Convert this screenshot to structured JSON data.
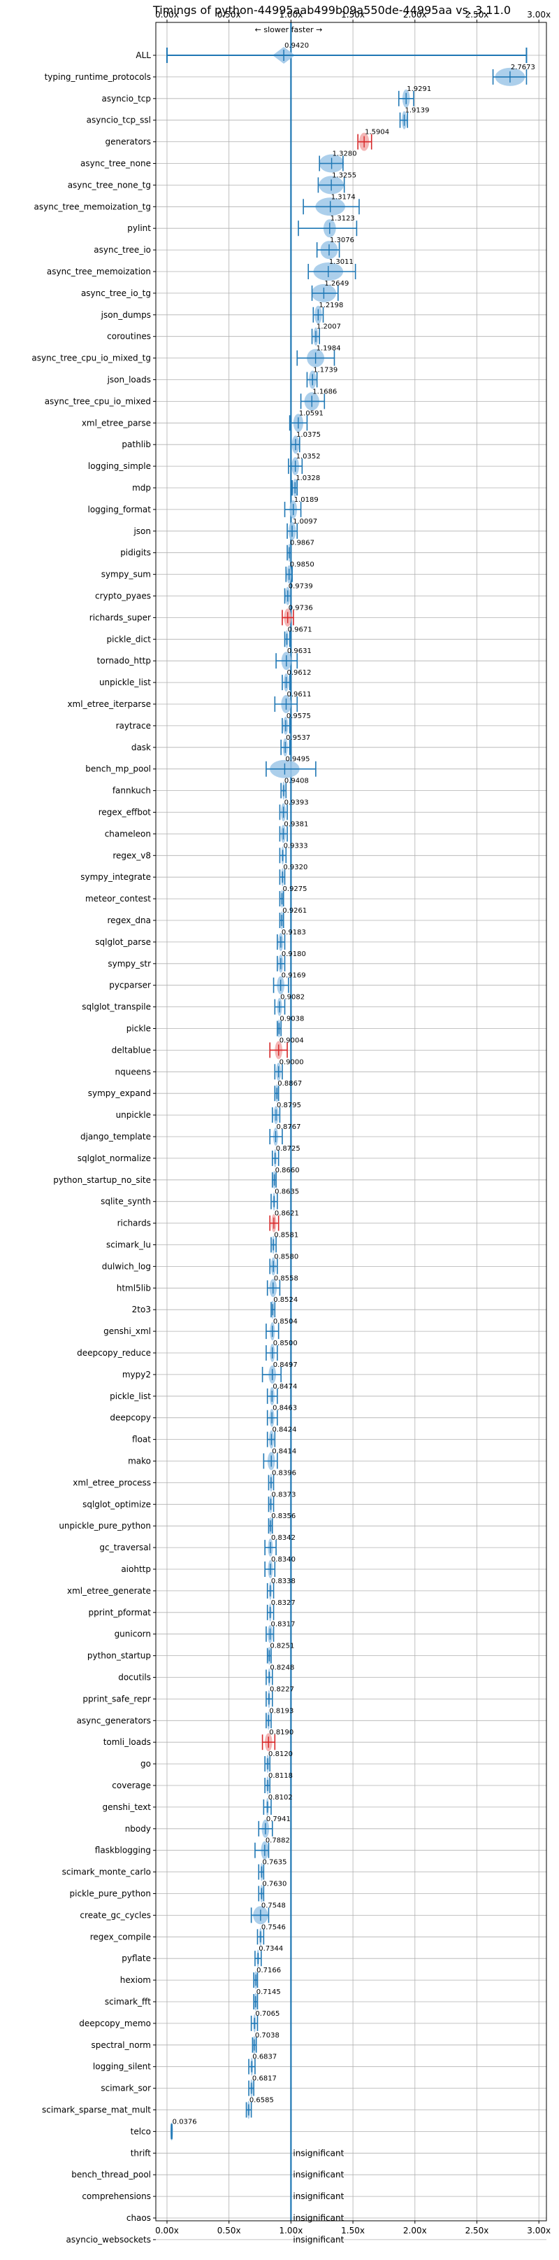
{
  "chart_data": {
    "type": "violin",
    "title": "Timings of python-44995aab499b09a550de-44995aa vs. 3.11.0",
    "annotation": "← slower   faster →",
    "xlim": [
      -0.05,
      3.0
    ],
    "xticks": [
      "0.00x",
      "0.50x",
      "1.00x",
      "1.50x",
      "2.00x",
      "2.50x",
      "3.00x"
    ],
    "xtick_values": [
      0,
      0.5,
      1.0,
      1.5,
      2.0,
      2.5,
      3.0
    ],
    "reference_line": 1.0,
    "grid": true,
    "insignificant_label": "insignificant",
    "benchmarks": [
      {
        "name": "ALL",
        "value": 0.942,
        "label": "0.9420",
        "lo": 0.0,
        "hi": 2.9,
        "spread": 0.08,
        "color": "blue"
      },
      {
        "name": "typing_runtime_protocols",
        "value": 2.7673,
        "label": "2.7673",
        "lo": 2.63,
        "hi": 2.9,
        "spread": 0.12,
        "color": "blue"
      },
      {
        "name": "asyncio_tcp",
        "value": 1.9291,
        "label": "1.9291",
        "lo": 1.87,
        "hi": 1.99,
        "spread": 0.03,
        "color": "blue"
      },
      {
        "name": "asyncio_tcp_ssl",
        "value": 1.9139,
        "label": "1.9139",
        "lo": 1.88,
        "hi": 1.94,
        "spread": 0.02,
        "color": "blue"
      },
      {
        "name": "generators",
        "value": 1.5904,
        "label": "1.5904",
        "lo": 1.54,
        "hi": 1.65,
        "spread": 0.04,
        "color": "red"
      },
      {
        "name": "async_tree_none",
        "value": 1.328,
        "label": "1.3280",
        "lo": 1.23,
        "hi": 1.42,
        "spread": 0.1,
        "color": "blue"
      },
      {
        "name": "async_tree_none_tg",
        "value": 1.3255,
        "label": "1.3255",
        "lo": 1.22,
        "hi": 1.43,
        "spread": 0.1,
        "color": "blue"
      },
      {
        "name": "async_tree_memoization_tg",
        "value": 1.3174,
        "label": "1.3174",
        "lo": 1.1,
        "hi": 1.55,
        "spread": 0.12,
        "color": "blue"
      },
      {
        "name": "pylint",
        "value": 1.3123,
        "label": "1.3123",
        "lo": 1.06,
        "hi": 1.53,
        "spread": 0.05,
        "color": "blue"
      },
      {
        "name": "async_tree_io",
        "value": 1.3076,
        "label": "1.3076",
        "lo": 1.21,
        "hi": 1.39,
        "spread": 0.07,
        "color": "blue"
      },
      {
        "name": "async_tree_memoization",
        "value": 1.3011,
        "label": "1.3011",
        "lo": 1.14,
        "hi": 1.52,
        "spread": 0.12,
        "color": "blue"
      },
      {
        "name": "async_tree_io_tg",
        "value": 1.2649,
        "label": "1.2649",
        "lo": 1.17,
        "hi": 1.38,
        "spread": 0.1,
        "color": "blue"
      },
      {
        "name": "json_dumps",
        "value": 1.2198,
        "label": "1.2198",
        "lo": 1.18,
        "hi": 1.26,
        "spread": 0.03,
        "color": "blue"
      },
      {
        "name": "coroutines",
        "value": 1.2007,
        "label": "1.2007",
        "lo": 1.17,
        "hi": 1.23,
        "spread": 0.02,
        "color": "blue"
      },
      {
        "name": "async_tree_cpu_io_mixed_tg",
        "value": 1.1984,
        "label": "1.1984",
        "lo": 1.05,
        "hi": 1.35,
        "spread": 0.07,
        "color": "blue"
      },
      {
        "name": "json_loads",
        "value": 1.1739,
        "label": "1.1739",
        "lo": 1.13,
        "hi": 1.21,
        "spread": 0.03,
        "color": "blue"
      },
      {
        "name": "async_tree_cpu_io_mixed",
        "value": 1.1686,
        "label": "1.1686",
        "lo": 1.08,
        "hi": 1.27,
        "spread": 0.06,
        "color": "blue"
      },
      {
        "name": "xml_etree_parse",
        "value": 1.0591,
        "label": "1.0591",
        "lo": 0.99,
        "hi": 1.13,
        "spread": 0.04,
        "color": "blue"
      },
      {
        "name": "pathlib",
        "value": 1.0375,
        "label": "1.0375",
        "lo": 1.0,
        "hi": 1.07,
        "spread": 0.03,
        "color": "blue"
      },
      {
        "name": "logging_simple",
        "value": 1.0352,
        "label": "1.0352",
        "lo": 0.98,
        "hi": 1.09,
        "spread": 0.03,
        "color": "blue"
      },
      {
        "name": "mdp",
        "value": 1.0328,
        "label": "1.0328",
        "lo": 1.01,
        "hi": 1.05,
        "spread": 0.02,
        "color": "blue"
      },
      {
        "name": "logging_format",
        "value": 1.0189,
        "label": "1.0189",
        "lo": 0.95,
        "hi": 1.08,
        "spread": 0.03,
        "color": "blue"
      },
      {
        "name": "json",
        "value": 1.0097,
        "label": "1.0097",
        "lo": 0.97,
        "hi": 1.05,
        "spread": 0.03,
        "color": "blue"
      },
      {
        "name": "pidigits",
        "value": 0.9867,
        "label": "0.9867",
        "lo": 0.97,
        "hi": 1.0,
        "spread": 0.01,
        "color": "blue"
      },
      {
        "name": "sympy_sum",
        "value": 0.985,
        "label": "0.9850",
        "lo": 0.96,
        "hi": 1.01,
        "spread": 0.02,
        "color": "blue"
      },
      {
        "name": "crypto_pyaes",
        "value": 0.9739,
        "label": "0.9739",
        "lo": 0.95,
        "hi": 1.0,
        "spread": 0.02,
        "color": "blue"
      },
      {
        "name": "richards_super",
        "value": 0.9736,
        "label": "0.9736",
        "lo": 0.93,
        "hi": 1.02,
        "spread": 0.03,
        "color": "red"
      },
      {
        "name": "pickle_dict",
        "value": 0.9671,
        "label": "0.9671",
        "lo": 0.95,
        "hi": 0.99,
        "spread": 0.01,
        "color": "blue"
      },
      {
        "name": "tornado_http",
        "value": 0.9631,
        "label": "0.9631",
        "lo": 0.88,
        "hi": 1.05,
        "spread": 0.04,
        "color": "blue"
      },
      {
        "name": "unpickle_list",
        "value": 0.9612,
        "label": "0.9612",
        "lo": 0.93,
        "hi": 0.99,
        "spread": 0.02,
        "color": "blue"
      },
      {
        "name": "xml_etree_iterparse",
        "value": 0.9611,
        "label": "0.9611",
        "lo": 0.87,
        "hi": 1.05,
        "spread": 0.04,
        "color": "blue"
      },
      {
        "name": "raytrace",
        "value": 0.9575,
        "label": "0.9575",
        "lo": 0.93,
        "hi": 0.99,
        "spread": 0.02,
        "color": "blue"
      },
      {
        "name": "dask",
        "value": 0.9537,
        "label": "0.9537",
        "lo": 0.92,
        "hi": 0.99,
        "spread": 0.02,
        "color": "blue"
      },
      {
        "name": "bench_mp_pool",
        "value": 0.9495,
        "label": "0.9495",
        "lo": 0.8,
        "hi": 1.2,
        "spread": 0.12,
        "color": "blue"
      },
      {
        "name": "fannkuch",
        "value": 0.9408,
        "label": "0.9408",
        "lo": 0.92,
        "hi": 0.96,
        "spread": 0.01,
        "color": "blue"
      },
      {
        "name": "regex_effbot",
        "value": 0.9393,
        "label": "0.9393",
        "lo": 0.91,
        "hi": 0.97,
        "spread": 0.02,
        "color": "blue"
      },
      {
        "name": "chameleon",
        "value": 0.9381,
        "label": "0.9381",
        "lo": 0.91,
        "hi": 0.97,
        "spread": 0.02,
        "color": "blue"
      },
      {
        "name": "regex_v8",
        "value": 0.9333,
        "label": "0.9333",
        "lo": 0.91,
        "hi": 0.96,
        "spread": 0.01,
        "color": "blue"
      },
      {
        "name": "sympy_integrate",
        "value": 0.932,
        "label": "0.9320",
        "lo": 0.91,
        "hi": 0.95,
        "spread": 0.01,
        "color": "blue"
      },
      {
        "name": "meteor_contest",
        "value": 0.9275,
        "label": "0.9275",
        "lo": 0.91,
        "hi": 0.94,
        "spread": 0.01,
        "color": "blue"
      },
      {
        "name": "regex_dna",
        "value": 0.9261,
        "label": "0.9261",
        "lo": 0.91,
        "hi": 0.94,
        "spread": 0.01,
        "color": "blue"
      },
      {
        "name": "sqlglot_parse",
        "value": 0.9183,
        "label": "0.9183",
        "lo": 0.89,
        "hi": 0.95,
        "spread": 0.02,
        "color": "blue"
      },
      {
        "name": "sympy_str",
        "value": 0.918,
        "label": "0.9180",
        "lo": 0.89,
        "hi": 0.95,
        "spread": 0.02,
        "color": "blue"
      },
      {
        "name": "pycparser",
        "value": 0.9169,
        "label": "0.9169",
        "lo": 0.86,
        "hi": 0.98,
        "spread": 0.03,
        "color": "blue"
      },
      {
        "name": "sqlglot_transpile",
        "value": 0.9082,
        "label": "0.9082",
        "lo": 0.87,
        "hi": 0.95,
        "spread": 0.02,
        "color": "blue"
      },
      {
        "name": "pickle",
        "value": 0.9038,
        "label": "0.9038",
        "lo": 0.89,
        "hi": 0.92,
        "spread": 0.01,
        "color": "blue"
      },
      {
        "name": "deltablue",
        "value": 0.9004,
        "label": "0.9004",
        "lo": 0.83,
        "hi": 0.97,
        "spread": 0.03,
        "color": "red"
      },
      {
        "name": "nqueens",
        "value": 0.9,
        "label": "0.9000",
        "lo": 0.87,
        "hi": 0.93,
        "spread": 0.02,
        "color": "blue"
      },
      {
        "name": "sympy_expand",
        "value": 0.8867,
        "label": "0.8867",
        "lo": 0.87,
        "hi": 0.9,
        "spread": 0.01,
        "color": "blue"
      },
      {
        "name": "unpickle",
        "value": 0.8795,
        "label": "0.8795",
        "lo": 0.85,
        "hi": 0.91,
        "spread": 0.02,
        "color": "blue"
      },
      {
        "name": "django_template",
        "value": 0.8767,
        "label": "0.8767",
        "lo": 0.83,
        "hi": 0.93,
        "spread": 0.02,
        "color": "blue"
      },
      {
        "name": "sqlglot_normalize",
        "value": 0.8725,
        "label": "0.8725",
        "lo": 0.85,
        "hi": 0.9,
        "spread": 0.01,
        "color": "blue"
      },
      {
        "name": "python_startup_no_site",
        "value": 0.866,
        "label": "0.8660",
        "lo": 0.85,
        "hi": 0.88,
        "spread": 0.01,
        "color": "blue"
      },
      {
        "name": "sqlite_synth",
        "value": 0.8635,
        "label": "0.8635",
        "lo": 0.84,
        "hi": 0.89,
        "spread": 0.01,
        "color": "blue"
      },
      {
        "name": "richards",
        "value": 0.8621,
        "label": "0.8621",
        "lo": 0.83,
        "hi": 0.9,
        "spread": 0.02,
        "color": "red"
      },
      {
        "name": "scimark_lu",
        "value": 0.8581,
        "label": "0.8581",
        "lo": 0.84,
        "hi": 0.88,
        "spread": 0.01,
        "color": "blue"
      },
      {
        "name": "dulwich_log",
        "value": 0.858,
        "label": "0.8580",
        "lo": 0.83,
        "hi": 0.89,
        "spread": 0.02,
        "color": "blue"
      },
      {
        "name": "html5lib",
        "value": 0.8558,
        "label": "0.8558",
        "lo": 0.81,
        "hi": 0.91,
        "spread": 0.03,
        "color": "blue"
      },
      {
        "name": "2to3",
        "value": 0.8524,
        "label": "0.8524",
        "lo": 0.84,
        "hi": 0.87,
        "spread": 0.01,
        "color": "blue"
      },
      {
        "name": "genshi_xml",
        "value": 0.8504,
        "label": "0.8504",
        "lo": 0.8,
        "hi": 0.9,
        "spread": 0.02,
        "color": "blue"
      },
      {
        "name": "deepcopy_reduce",
        "value": 0.85,
        "label": "0.8500",
        "lo": 0.8,
        "hi": 0.89,
        "spread": 0.02,
        "color": "blue"
      },
      {
        "name": "mypy2",
        "value": 0.8497,
        "label": "0.8497",
        "lo": 0.77,
        "hi": 0.92,
        "spread": 0.03,
        "color": "blue"
      },
      {
        "name": "pickle_list",
        "value": 0.8474,
        "label": "0.8474",
        "lo": 0.81,
        "hi": 0.89,
        "spread": 0.02,
        "color": "blue"
      },
      {
        "name": "deepcopy",
        "value": 0.8463,
        "label": "0.8463",
        "lo": 0.81,
        "hi": 0.89,
        "spread": 0.02,
        "color": "blue"
      },
      {
        "name": "float",
        "value": 0.8424,
        "label": "0.8424",
        "lo": 0.81,
        "hi": 0.87,
        "spread": 0.02,
        "color": "blue"
      },
      {
        "name": "mako",
        "value": 0.8414,
        "label": "0.8414",
        "lo": 0.78,
        "hi": 0.89,
        "spread": 0.03,
        "color": "blue"
      },
      {
        "name": "xml_etree_process",
        "value": 0.8396,
        "label": "0.8396",
        "lo": 0.82,
        "hi": 0.86,
        "spread": 0.01,
        "color": "blue"
      },
      {
        "name": "sqlglot_optimize",
        "value": 0.8373,
        "label": "0.8373",
        "lo": 0.82,
        "hi": 0.86,
        "spread": 0.01,
        "color": "blue"
      },
      {
        "name": "unpickle_pure_python",
        "value": 0.8356,
        "label": "0.8356",
        "lo": 0.82,
        "hi": 0.85,
        "spread": 0.01,
        "color": "blue"
      },
      {
        "name": "gc_traversal",
        "value": 0.8342,
        "label": "0.8342",
        "lo": 0.79,
        "hi": 0.88,
        "spread": 0.02,
        "color": "blue"
      },
      {
        "name": "aiohttp",
        "value": 0.834,
        "label": "0.8340",
        "lo": 0.79,
        "hi": 0.87,
        "spread": 0.02,
        "color": "blue"
      },
      {
        "name": "xml_etree_generate",
        "value": 0.8338,
        "label": "0.8338",
        "lo": 0.81,
        "hi": 0.86,
        "spread": 0.01,
        "color": "blue"
      },
      {
        "name": "pprint_pformat",
        "value": 0.8327,
        "label": "0.8327",
        "lo": 0.81,
        "hi": 0.86,
        "spread": 0.01,
        "color": "blue"
      },
      {
        "name": "gunicorn",
        "value": 0.8317,
        "label": "0.8317",
        "lo": 0.8,
        "hi": 0.86,
        "spread": 0.02,
        "color": "blue"
      },
      {
        "name": "python_startup",
        "value": 0.8251,
        "label": "0.8251",
        "lo": 0.81,
        "hi": 0.84,
        "spread": 0.01,
        "color": "blue"
      },
      {
        "name": "docutils",
        "value": 0.8248,
        "label": "0.8248",
        "lo": 0.8,
        "hi": 0.85,
        "spread": 0.01,
        "color": "blue"
      },
      {
        "name": "pprint_safe_repr",
        "value": 0.8227,
        "label": "0.8227",
        "lo": 0.8,
        "hi": 0.85,
        "spread": 0.01,
        "color": "blue"
      },
      {
        "name": "async_generators",
        "value": 0.8193,
        "label": "0.8193",
        "lo": 0.8,
        "hi": 0.84,
        "spread": 0.01,
        "color": "blue"
      },
      {
        "name": "tomli_loads",
        "value": 0.819,
        "label": "0.8190",
        "lo": 0.77,
        "hi": 0.87,
        "spread": 0.03,
        "color": "red"
      },
      {
        "name": "go",
        "value": 0.812,
        "label": "0.8120",
        "lo": 0.79,
        "hi": 0.83,
        "spread": 0.01,
        "color": "blue"
      },
      {
        "name": "coverage",
        "value": 0.8118,
        "label": "0.8118",
        "lo": 0.79,
        "hi": 0.83,
        "spread": 0.01,
        "color": "blue"
      },
      {
        "name": "genshi_text",
        "value": 0.8102,
        "label": "0.8102",
        "lo": 0.78,
        "hi": 0.84,
        "spread": 0.01,
        "color": "blue"
      },
      {
        "name": "nbody",
        "value": 0.7941,
        "label": "0.7941",
        "lo": 0.74,
        "hi": 0.85,
        "spread": 0.03,
        "color": "blue"
      },
      {
        "name": "flaskblogging",
        "value": 0.7882,
        "label": "0.7882",
        "lo": 0.71,
        "hi": 0.82,
        "spread": 0.03,
        "color": "blue"
      },
      {
        "name": "scimark_monte_carlo",
        "value": 0.7635,
        "label": "0.7635",
        "lo": 0.74,
        "hi": 0.78,
        "spread": 0.01,
        "color": "blue"
      },
      {
        "name": "pickle_pure_python",
        "value": 0.763,
        "label": "0.7630",
        "lo": 0.74,
        "hi": 0.78,
        "spread": 0.01,
        "color": "blue"
      },
      {
        "name": "create_gc_cycles",
        "value": 0.7548,
        "label": "0.7548",
        "lo": 0.68,
        "hi": 0.82,
        "spread": 0.06,
        "color": "blue"
      },
      {
        "name": "regex_compile",
        "value": 0.7546,
        "label": "0.7546",
        "lo": 0.73,
        "hi": 0.78,
        "spread": 0.01,
        "color": "blue"
      },
      {
        "name": "pyflate",
        "value": 0.7344,
        "label": "0.7344",
        "lo": 0.71,
        "hi": 0.76,
        "spread": 0.01,
        "color": "blue"
      },
      {
        "name": "hexiom",
        "value": 0.7166,
        "label": "0.7166",
        "lo": 0.7,
        "hi": 0.73,
        "spread": 0.01,
        "color": "blue"
      },
      {
        "name": "scimark_fft",
        "value": 0.7145,
        "label": "0.7145",
        "lo": 0.7,
        "hi": 0.73,
        "spread": 0.01,
        "color": "blue"
      },
      {
        "name": "deepcopy_memo",
        "value": 0.7065,
        "label": "0.7065",
        "lo": 0.68,
        "hi": 0.73,
        "spread": 0.01,
        "color": "blue"
      },
      {
        "name": "spectral_norm",
        "value": 0.7038,
        "label": "0.7038",
        "lo": 0.69,
        "hi": 0.72,
        "spread": 0.01,
        "color": "blue"
      },
      {
        "name": "logging_silent",
        "value": 0.6837,
        "label": "0.6837",
        "lo": 0.66,
        "hi": 0.71,
        "spread": 0.01,
        "color": "blue"
      },
      {
        "name": "scimark_sor",
        "value": 0.6817,
        "label": "0.6817",
        "lo": 0.66,
        "hi": 0.7,
        "spread": 0.01,
        "color": "blue"
      },
      {
        "name": "scimark_sparse_mat_mult",
        "value": 0.6585,
        "label": "0.6585",
        "lo": 0.64,
        "hi": 0.68,
        "spread": 0.01,
        "color": "blue"
      },
      {
        "name": "telco",
        "value": 0.0376,
        "label": "0.0376",
        "lo": 0.035,
        "hi": 0.04,
        "spread": 0.002,
        "color": "blue"
      },
      {
        "name": "thrift",
        "value": null,
        "insignificant": true
      },
      {
        "name": "bench_thread_pool",
        "value": null,
        "insignificant": true
      },
      {
        "name": "comprehensions",
        "value": null,
        "insignificant": true
      },
      {
        "name": "chaos",
        "value": null,
        "insignificant": true
      },
      {
        "name": "asyncio_websockets",
        "value": null,
        "insignificant": true
      }
    ],
    "colors": {
      "blue_body": "#9ec7e8",
      "blue_line": "#1f77b4",
      "red_body": "#f2a9a9",
      "red_line": "#d62728",
      "ref_line": "#1f77b4",
      "grid": "#b0b0b0"
    }
  }
}
